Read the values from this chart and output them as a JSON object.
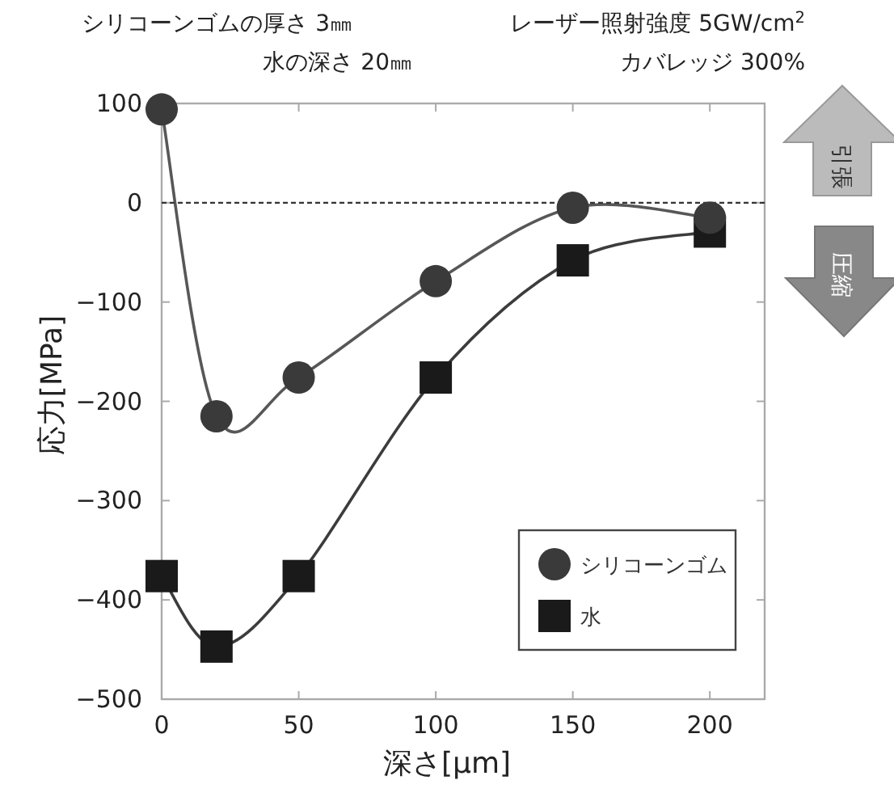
{
  "chart_data": {
    "type": "line",
    "xlabel": "深さ[μm]",
    "ylabel": "応力[MPa]",
    "annotations": [
      "シリコーンゴムの厚さ 3㎜",
      "レーザー照射強度 5GW/cm$^{2}$",
      "水の深さ 20㎜",
      "カバレッジ 300%",
      "引張",
      "圧縮"
    ],
    "x": [
      0,
      20,
      50,
      100,
      150,
      200
    ],
    "series": [
      {
        "name": "シリコーンゴム",
        "color": "#3a3a3a",
        "marker": "circle",
        "values": [
          94,
          -215,
          -176,
          -79,
          -5,
          -15
        ]
      },
      {
        "name": "水",
        "color": "#1a1a1a",
        "marker": "square",
        "values": [
          -376,
          -447,
          -376,
          -176,
          -58,
          -29
        ]
      }
    ],
    "xlim": [
      0,
      220
    ],
    "ylim": [
      -500,
      100
    ],
    "xticks": [
      0,
      50,
      100,
      150,
      200
    ],
    "yticks": [
      -500,
      -400,
      -300,
      -200,
      -100,
      0,
      100
    ],
    "ref_lines": [
      {
        "axis": "y",
        "value": 0,
        "line_style": "dashed",
        "color": "#333333"
      }
    ],
    "legend": "bottom right",
    "grid": false
  }
}
